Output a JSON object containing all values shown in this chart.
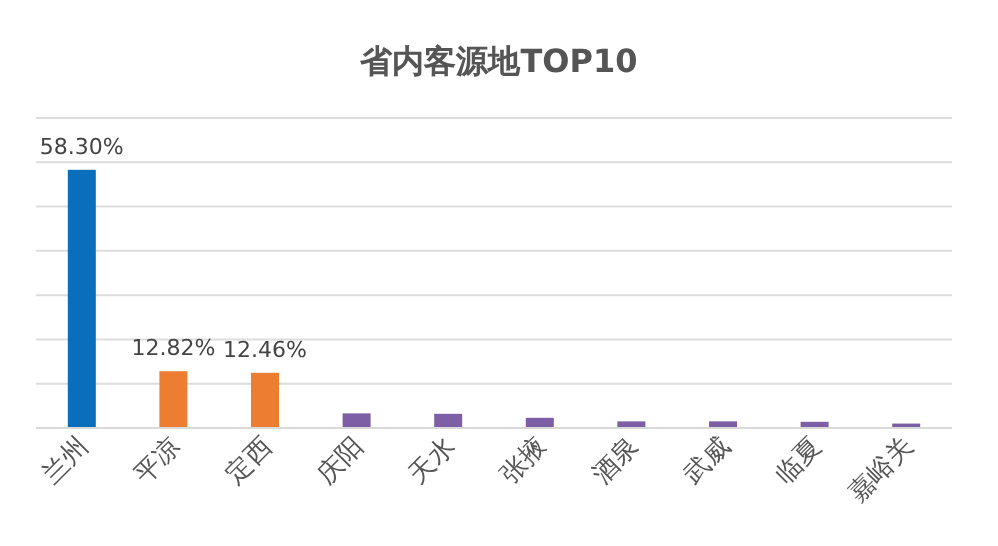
{
  "chart_data": {
    "type": "bar",
    "title": "省内客源地TOP10",
    "categories": [
      "兰州",
      "平凉",
      "定西",
      "庆阳",
      "天水",
      "张掖",
      "酒泉",
      "武威",
      "临夏",
      "嘉峪关"
    ],
    "values": [
      58.3,
      12.82,
      12.46,
      3.3,
      3.2,
      2.3,
      1.5,
      1.5,
      1.4,
      1.0
    ],
    "colors": [
      "#0a6ebd",
      "#ed7d31",
      "#ed7d31",
      "#7d5fa5",
      "#7d5fa5",
      "#7d5fa5",
      "#7d5fa5",
      "#7d5fa5",
      "#7d5fa5",
      "#7d5fa5"
    ],
    "value_labels": [
      "58.30%",
      "12.82%",
      "12.46%",
      null,
      null,
      null,
      null,
      null,
      null,
      null
    ],
    "ylim": [
      0,
      70
    ],
    "yticks": [
      {
        "value": 0,
        "label": null
      },
      {
        "value": 10,
        "label": null
      },
      {
        "value": 20,
        "label": null
      },
      {
        "value": 30,
        "label": null
      },
      {
        "value": 40,
        "label": null
      },
      {
        "value": 50,
        "label": null
      },
      {
        "value": 60,
        "label": null
      },
      {
        "value": 70,
        "label": null
      }
    ],
    "tick_labels": "x",
    "grid": "y"
  }
}
